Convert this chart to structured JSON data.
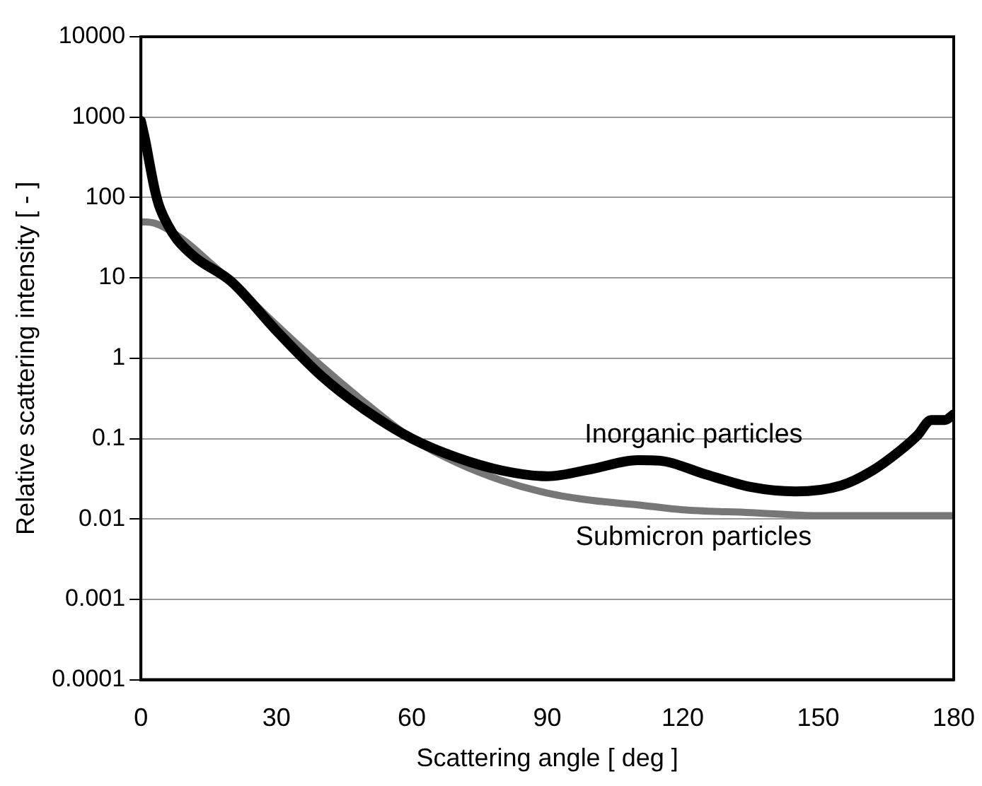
{
  "chart_data": {
    "type": "line",
    "xlabel": "Scattering angle [ deg ]",
    "ylabel": "Relative scattering intensity [ - ]",
    "log": "y",
    "grid": "y",
    "legend": false,
    "marker": "none",
    "line_style": "solid",
    "xlim": [
      0,
      180
    ],
    "xticks": [
      0,
      30,
      60,
      90,
      120,
      150,
      180
    ],
    "ylim": [
      0.0001,
      10000
    ],
    "yticks": [
      0.0001,
      0.001,
      0.01,
      0.1,
      1,
      10,
      100,
      1000,
      10000
    ],
    "series": [
      {
        "name": "Inorganic particles",
        "color": "#000000",
        "x": [
          0,
          1,
          2,
          3,
          4,
          6,
          8,
          12,
          20,
          30,
          40,
          50,
          60,
          70,
          80,
          90,
          100,
          110,
          115,
          125,
          135,
          145,
          155,
          162,
          168,
          172,
          175,
          178,
          180
        ],
        "values": [
          900,
          500,
          250,
          130,
          80,
          45,
          30,
          18,
          9,
          2.2,
          0.6,
          0.22,
          0.1,
          0.058,
          0.04,
          0.034,
          0.042,
          0.054,
          0.053,
          0.036,
          0.025,
          0.022,
          0.026,
          0.04,
          0.07,
          0.11,
          0.17,
          0.17,
          0.2
        ]
      },
      {
        "name": "Submicron particles",
        "color": "#777777",
        "x": [
          0,
          3,
          6,
          10,
          15,
          20,
          30,
          40,
          50,
          60,
          70,
          80,
          90,
          100,
          110,
          120,
          135,
          150,
          165,
          180
        ],
        "values": [
          50,
          48,
          40,
          28,
          16,
          9,
          2.6,
          0.8,
          0.27,
          0.1,
          0.05,
          0.03,
          0.021,
          0.017,
          0.015,
          0.013,
          0.012,
          0.011,
          0.011,
          0.011
        ]
      }
    ]
  }
}
